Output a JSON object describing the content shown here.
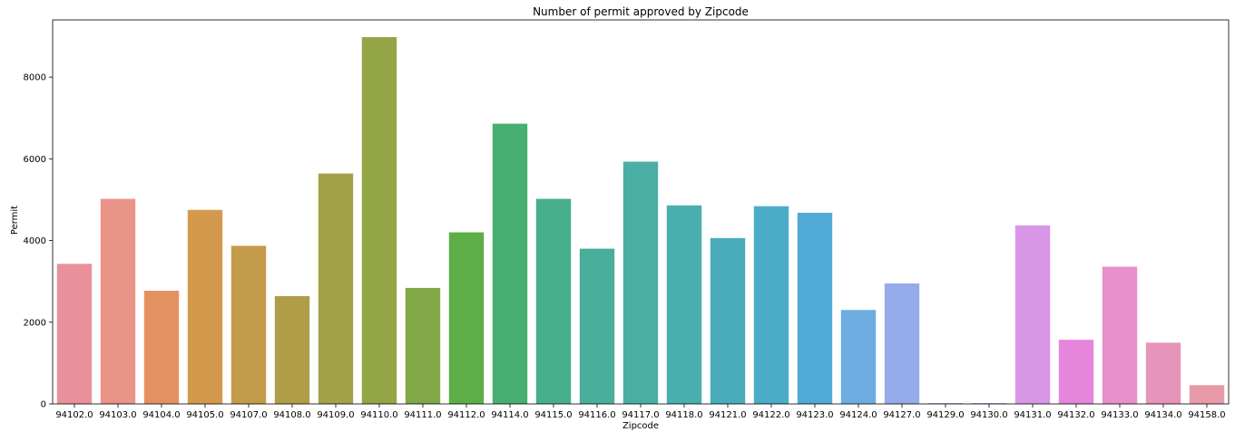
{
  "chart_data": {
    "type": "bar",
    "title": "Number of permit approved by Zipcode",
    "xlabel": "Zipcode",
    "ylabel": "Permit",
    "ylim": [
      0,
      9400
    ],
    "yticks": [
      0,
      2000,
      4000,
      6000,
      8000
    ],
    "ytick_labels": [
      "0",
      "2000",
      "4000",
      "6000",
      "8000"
    ],
    "grid": false,
    "legend": "none",
    "categories": [
      "94102.0",
      "94103.0",
      "94104.0",
      "94105.0",
      "94107.0",
      "94108.0",
      "94109.0",
      "94110.0",
      "94111.0",
      "94112.0",
      "94114.0",
      "94115.0",
      "94116.0",
      "94117.0",
      "94118.0",
      "94121.0",
      "94122.0",
      "94123.0",
      "94124.0",
      "94127.0",
      "94129.0",
      "94130.0",
      "94131.0",
      "94132.0",
      "94133.0",
      "94134.0",
      "94158.0"
    ],
    "values": [
      3430,
      5020,
      2770,
      4750,
      3870,
      2640,
      5640,
      8980,
      2840,
      4200,
      6860,
      5020,
      3800,
      5930,
      4860,
      4060,
      4840,
      4680,
      2300,
      2950,
      20,
      20,
      4370,
      1570,
      3360,
      1500,
      460
    ],
    "colors": [
      "#e8919b",
      "#e99389",
      "#e49161",
      "#d39a4e",
      "#c49a4b",
      "#b09d47",
      "#a3a148",
      "#94a545",
      "#80a847",
      "#5eae47",
      "#47af6f",
      "#48ae8c",
      "#49ae9a",
      "#4aaea5",
      "#4aaeaf",
      "#4aacba",
      "#4bacc8",
      "#52abd6",
      "#6dade2",
      "#96acea",
      "#bda6ec",
      "#cd9bec",
      "#d995e6",
      "#e585db",
      "#e890cc",
      "#e794bb",
      "#e89aa8"
    ]
  }
}
